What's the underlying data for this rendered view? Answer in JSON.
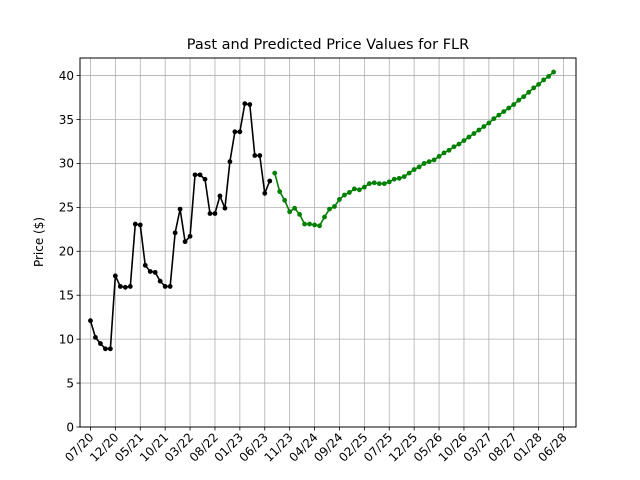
{
  "chart_data": {
    "type": "line",
    "title": "Past and Predicted Price Values for FLR",
    "xlabel": "",
    "ylabel": "Price ($)",
    "ylim": [
      0,
      42
    ],
    "yticks": [
      0,
      5,
      10,
      15,
      20,
      25,
      30,
      35,
      40
    ],
    "xtick_labels": [
      "07/20",
      "12/20",
      "05/21",
      "10/21",
      "03/22",
      "08/22",
      "01/23",
      "06/23",
      "11/23",
      "04/24",
      "09/24",
      "02/25",
      "07/25",
      "12/25",
      "05/26",
      "10/26",
      "03/27",
      "08/27",
      "01/28",
      "06/28"
    ],
    "grid": true,
    "colors": {
      "past": "#000000",
      "predicted": "#008000"
    },
    "series": [
      {
        "key": "past",
        "x_start_month": 6,
        "values": [
          12.1,
          10.2,
          9.5,
          8.9,
          8.9,
          17.2,
          16.0,
          15.9,
          16.0,
          23.1,
          23.0,
          18.4,
          17.7,
          17.6,
          16.6,
          16.0,
          16.0,
          22.1,
          24.8,
          21.1,
          21.7,
          28.7,
          28.7,
          28.2,
          24.3,
          24.3,
          26.3,
          24.9,
          30.2,
          33.6,
          33.6,
          36.8,
          36.7,
          30.9,
          30.9,
          26.6,
          28.0
        ]
      },
      {
        "key": "predicted",
        "x_start_month": 43,
        "values": [
          28.9,
          26.8,
          25.8,
          24.5,
          24.9,
          24.2,
          23.1,
          23.1,
          23.0,
          22.9,
          23.9,
          24.8,
          25.1,
          25.9,
          26.4,
          26.7,
          27.1,
          27.0,
          27.3,
          27.7,
          27.8,
          27.7,
          27.7,
          27.9,
          28.2,
          28.3,
          28.5,
          28.9,
          29.3,
          29.6,
          30.0,
          30.2,
          30.4,
          30.8,
          31.2,
          31.5,
          31.9,
          32.2,
          32.6,
          33.0,
          33.4,
          33.8,
          34.2,
          34.6,
          35.1,
          35.5,
          35.9,
          36.3,
          36.7,
          37.2,
          37.6,
          38.1,
          38.6,
          39.0,
          39.5,
          39.9,
          40.4
        ]
      }
    ]
  }
}
